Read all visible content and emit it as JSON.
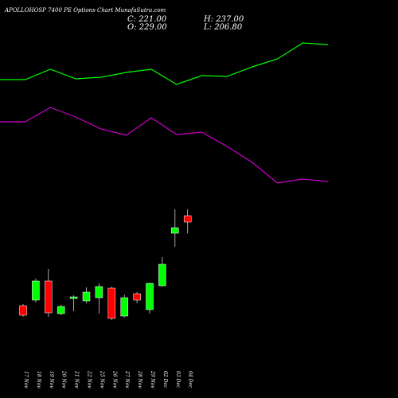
{
  "header": {
    "title": "APOLLOHOSP 7400 PE Options  Chart MunafaSutra.com",
    "close": "C: 221.00",
    "high": "H: 237.00",
    "open": "O: 229.00",
    "low": "L: 206.80"
  },
  "colors": {
    "background": "#000000",
    "up": "#00ff00",
    "down": "#ff0000",
    "upper_band": "#00ff00",
    "lower_band": "#cc00cc"
  },
  "chart_data": {
    "type": "candlestick",
    "categories": [
      "17 Nov",
      "18 Nov",
      "19 Nov",
      "20 Nov",
      "21 Nov",
      "22 Nov",
      "25 Nov",
      "26 Nov",
      "27 Nov",
      "28 Nov",
      "29 Nov",
      "02 Dec",
      "03 Dec",
      "04 Dec"
    ],
    "ylim": [
      0,
      350
    ],
    "candles": [
      {
        "open": 116,
        "high": 118,
        "low": 102,
        "close": 104
      },
      {
        "open": 123,
        "high": 150,
        "low": 120,
        "close": 147
      },
      {
        "open": 147,
        "high": 162,
        "low": 102,
        "close": 107
      },
      {
        "open": 106,
        "high": 117,
        "low": 104,
        "close": 115
      },
      {
        "open": 125,
        "high": 129,
        "low": 109,
        "close": 127
      },
      {
        "open": 122,
        "high": 139,
        "low": 119,
        "close": 133
      },
      {
        "open": 126,
        "high": 144,
        "low": 106,
        "close": 140
      },
      {
        "open": 138,
        "high": 140,
        "low": 98,
        "close": 100
      },
      {
        "open": 103,
        "high": 130,
        "low": 101,
        "close": 126
      },
      {
        "open": 131,
        "high": 133,
        "low": 119,
        "close": 123
      },
      {
        "open": 111,
        "high": 145,
        "low": 106,
        "close": 144
      },
      {
        "open": 141,
        "high": 177,
        "low": 140,
        "close": 168
      },
      {
        "open": 207,
        "high": 237,
        "low": 190,
        "close": 214
      },
      {
        "open": 229,
        "high": 237,
        "low": 206.8,
        "close": 221
      }
    ],
    "upper_band": [
      {
        "x": "15 Nov",
        "y": 400
      },
      {
        "x": "17 Nov",
        "y": 400
      },
      {
        "x": "19 Nov",
        "y": 413
      },
      {
        "x": "21 Nov",
        "y": 401
      },
      {
        "x": "22 Nov",
        "y": 403
      },
      {
        "x": "26 Nov",
        "y": 409
      },
      {
        "x": "28 Nov",
        "y": 413
      },
      {
        "x": "01 Dec",
        "y": 394
      },
      {
        "x": "03 Dec",
        "y": 405
      },
      {
        "x": "04 Dec",
        "y": 404
      },
      {
        "x": "06 Dec",
        "y": 416
      },
      {
        "x": "08 Dec",
        "y": 426
      },
      {
        "x": "10 Dec",
        "y": 446
      },
      {
        "x": "12 Dec",
        "y": 444
      }
    ],
    "lower_band": [
      {
        "x": "15 Nov",
        "y": 347
      },
      {
        "x": "17 Nov",
        "y": 347
      },
      {
        "x": "19 Nov",
        "y": 365
      },
      {
        "x": "22 Nov",
        "y": 353
      },
      {
        "x": "26 Nov",
        "y": 338
      },
      {
        "x": "28 Nov",
        "y": 330
      },
      {
        "x": "01 Dec",
        "y": 352
      },
      {
        "x": "03 Dec",
        "y": 331
      },
      {
        "x": "04 Dec",
        "y": 334
      },
      {
        "x": "06 Dec",
        "y": 316
      },
      {
        "x": "08 Dec",
        "y": 296
      },
      {
        "x": "10 Dec",
        "y": 270
      },
      {
        "x": "12 Dec",
        "y": 275
      },
      {
        "x": "14 Dec",
        "y": 272
      }
    ]
  }
}
